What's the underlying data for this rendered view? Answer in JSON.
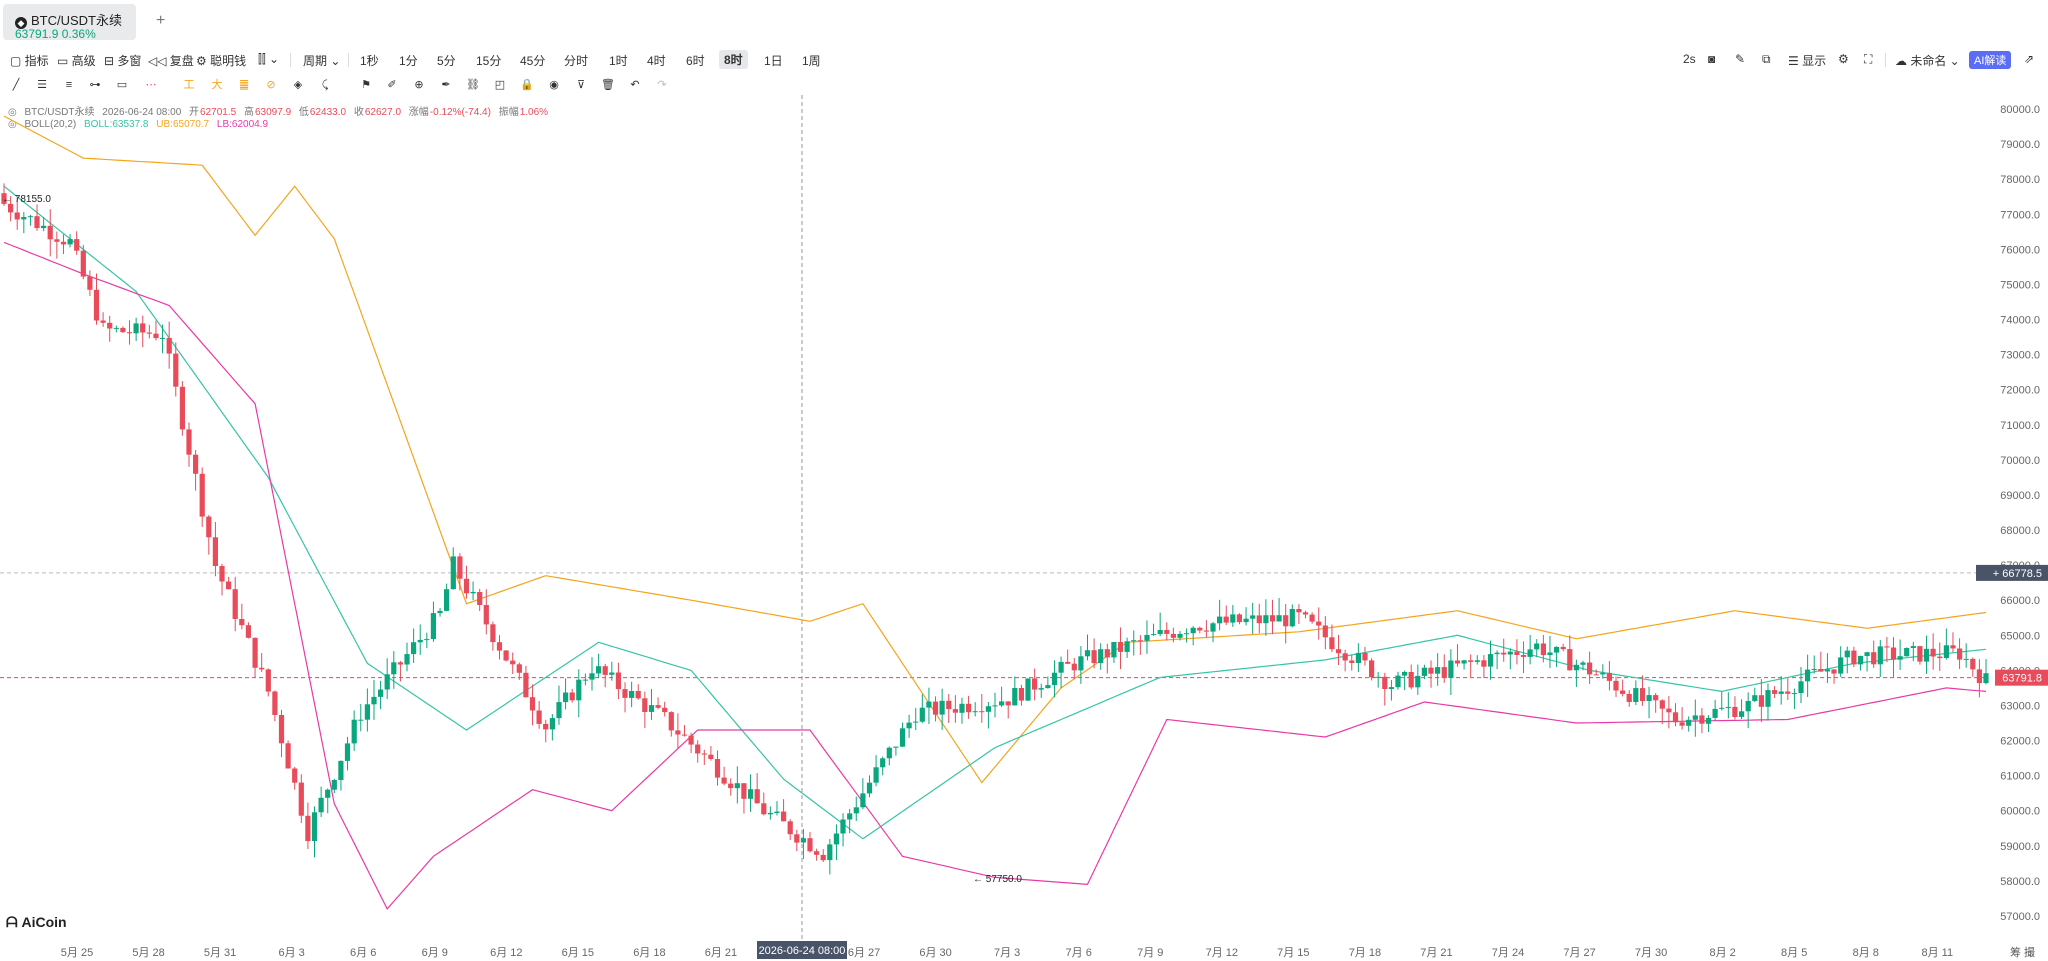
{
  "tab": {
    "symbol": "BTC/USDT永续",
    "price": "63791.9",
    "change": "0.36%",
    "add": "+"
  },
  "toolbar": {
    "left": [
      {
        "id": "indicators",
        "label": "指标",
        "icon": "indicator-icon"
      },
      {
        "id": "advanced",
        "label": "高级",
        "icon": "advanced-icon"
      },
      {
        "id": "multi",
        "label": "多窗",
        "icon": "multi-window-icon"
      },
      {
        "id": "replay",
        "label": "复盘",
        "icon": "replay-icon"
      },
      {
        "id": "smart",
        "label": "聪明钱",
        "icon": "smart-money-icon"
      }
    ],
    "period_label": "周期",
    "periods": [
      "1秒",
      "1分",
      "5分",
      "15分",
      "45分",
      "分时",
      "1时",
      "4时",
      "6时",
      "8时",
      "1日",
      "1周"
    ],
    "active_period": "8时",
    "right": {
      "interval": "2s",
      "display": "显示",
      "unnamed": "未命名",
      "ai": "AI解读"
    }
  },
  "colors": {
    "up": "#0aa67e",
    "down": "#e84b5a",
    "boll_mid": "#36c4a5",
    "boll_ub": "#f4a51c",
    "boll_lb": "#e83aa6",
    "ai": "#5b6cf5"
  },
  "legend": {
    "symbol": "BTC/USDT永续",
    "time": "2026-06-24 08:00",
    "open_label": "开",
    "open": "62701.5",
    "high_label": "高",
    "high": "63097.9",
    "low_label": "低",
    "low": "62433.0",
    "close_label": "收",
    "close": "62627.0",
    "change_label": "涨幅",
    "change": "-0.12%(-74.4)",
    "amp_label": "振幅",
    "amp": "1.06%",
    "boll_name": "BOLL(20,2)",
    "boll": "BOLL:63537.8",
    "ub": "UB:65070.7",
    "lb": "LB:62004.9"
  },
  "chart_data": {
    "type": "candlestick",
    "title": "",
    "y_ticks": [
      "80000.0",
      "79000.0",
      "78000.0",
      "77000.0",
      "76000.0",
      "75000.0",
      "74000.0",
      "73000.0",
      "72000.0",
      "71000.0",
      "70000.0",
      "69000.0",
      "68000.0",
      "67000.0",
      "66000.0",
      "65000.0",
      "64000.0",
      "63000.0",
      "62000.0",
      "61000.0",
      "60000.0",
      "59000.0",
      "58000.0",
      "57000.0"
    ],
    "ylim": [
      56600,
      80400
    ],
    "x_ticks": [
      "5月 25",
      "5月 28",
      "5月 31",
      "6月 3",
      "6月 6",
      "6月 9",
      "6月 12",
      "6月 15",
      "6月 18",
      "6月 21",
      "6月 27",
      "6月 30",
      "7月 3",
      "7月 6",
      "7月 9",
      "7月 12",
      "7月 15",
      "7月 18",
      "7月 21",
      "7月 24",
      "7月 27",
      "7月 30",
      "8月 2",
      "8月 5",
      "8月 8",
      "8月 11"
    ],
    "crosshair_time": "2026-06-24 08:00",
    "crosshair_price": "66778.5",
    "last_price": "63791.8",
    "max_label": "78155.0",
    "min_label": "57750.0",
    "close_keypoints": [
      [
        0,
        77300
      ],
      [
        10,
        76200
      ],
      [
        15,
        73700
      ],
      [
        24,
        73600
      ],
      [
        32,
        67000
      ],
      [
        40,
        63400
      ],
      [
        46,
        59400
      ],
      [
        54,
        62800
      ],
      [
        66,
        65600
      ],
      [
        68,
        67000
      ],
      [
        82,
        62400
      ],
      [
        89,
        64100
      ],
      [
        100,
        62600
      ],
      [
        115,
        60000
      ],
      [
        124,
        58800
      ],
      [
        138,
        62800
      ],
      [
        152,
        63200
      ],
      [
        162,
        64200
      ],
      [
        180,
        65300
      ],
      [
        196,
        65500
      ],
      [
        210,
        63600
      ],
      [
        232,
        64700
      ],
      [
        240,
        64000
      ],
      [
        253,
        62600
      ],
      [
        264,
        63000
      ],
      [
        280,
        64400
      ],
      [
        296,
        64500
      ],
      [
        300,
        63700
      ]
    ],
    "mid_keypoints": [
      [
        0,
        77800
      ],
      [
        20,
        74800
      ],
      [
        40,
        69500
      ],
      [
        55,
        64200
      ],
      [
        70,
        62300
      ],
      [
        90,
        64800
      ],
      [
        104,
        64000
      ],
      [
        118,
        60900
      ],
      [
        130,
        59200
      ],
      [
        150,
        61800
      ],
      [
        175,
        63800
      ],
      [
        200,
        64300
      ],
      [
        220,
        65000
      ],
      [
        240,
        64000
      ],
      [
        260,
        63400
      ],
      [
        280,
        64200
      ],
      [
        300,
        64600
      ]
    ],
    "ub_keypoints": [
      [
        0,
        79800
      ],
      [
        12,
        78600
      ],
      [
        30,
        78400
      ],
      [
        38,
        76400
      ],
      [
        44,
        77800
      ],
      [
        50,
        76300
      ],
      [
        70,
        65900
      ],
      [
        82,
        66700
      ],
      [
        104,
        66000
      ],
      [
        122,
        65400
      ],
      [
        130,
        65900
      ],
      [
        148,
        60800
      ],
      [
        160,
        63500
      ],
      [
        170,
        64800
      ],
      [
        196,
        65100
      ],
      [
        220,
        65700
      ],
      [
        238,
        64900
      ],
      [
        262,
        65700
      ],
      [
        282,
        65200
      ],
      [
        300,
        65650
      ]
    ],
    "lb_keypoints": [
      [
        0,
        76200
      ],
      [
        12,
        75300
      ],
      [
        25,
        74400
      ],
      [
        38,
        71600
      ],
      [
        50,
        60200
      ],
      [
        58,
        57200
      ],
      [
        65,
        58700
      ],
      [
        80,
        60600
      ],
      [
        92,
        60000
      ],
      [
        105,
        62300
      ],
      [
        122,
        62300
      ],
      [
        136,
        58700
      ],
      [
        150,
        58100
      ],
      [
        164,
        57900
      ],
      [
        176,
        62600
      ],
      [
        200,
        62100
      ],
      [
        215,
        63100
      ],
      [
        238,
        62500
      ],
      [
        270,
        62600
      ],
      [
        294,
        63500
      ],
      [
        300,
        63400
      ]
    ]
  }
}
